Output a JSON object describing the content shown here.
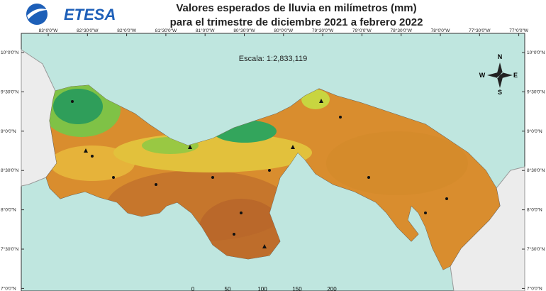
{
  "header": {
    "logo": "ETESA",
    "title_lines": [
      "Valores esperados de lluvia en milímetros (mm)",
      "para el trimestre de diciembre 2021 a febrero 2022"
    ]
  },
  "map": {
    "scale": "Escala: 1:2,833,119",
    "longitude_labels": [
      "83°0'0\"W",
      "82°30'0\"W",
      "82°0'0\"W",
      "81°30'0\"W",
      "81°0'0\"W",
      "80°30'0\"W",
      "80°0'0\"W",
      "79°30'0\"W",
      "79°0'0\"W",
      "78°30'0\"W",
      "78°0'0\"W",
      "77°30'0\"W",
      "77°0'0\"W"
    ],
    "latitude_labels": [
      "10°0'0\"N",
      "9°30'0\"N",
      "9°0'0\"N",
      "8°30'0\"N",
      "8°0'0\"N",
      "7°30'0\"N",
      "7°0'0\"N"
    ],
    "compass": {
      "n": "N",
      "s": "S",
      "e": "E",
      "w": "W"
    },
    "scale_bar_labels": [
      "0",
      "50",
      "100",
      "150",
      "200"
    ]
  }
}
